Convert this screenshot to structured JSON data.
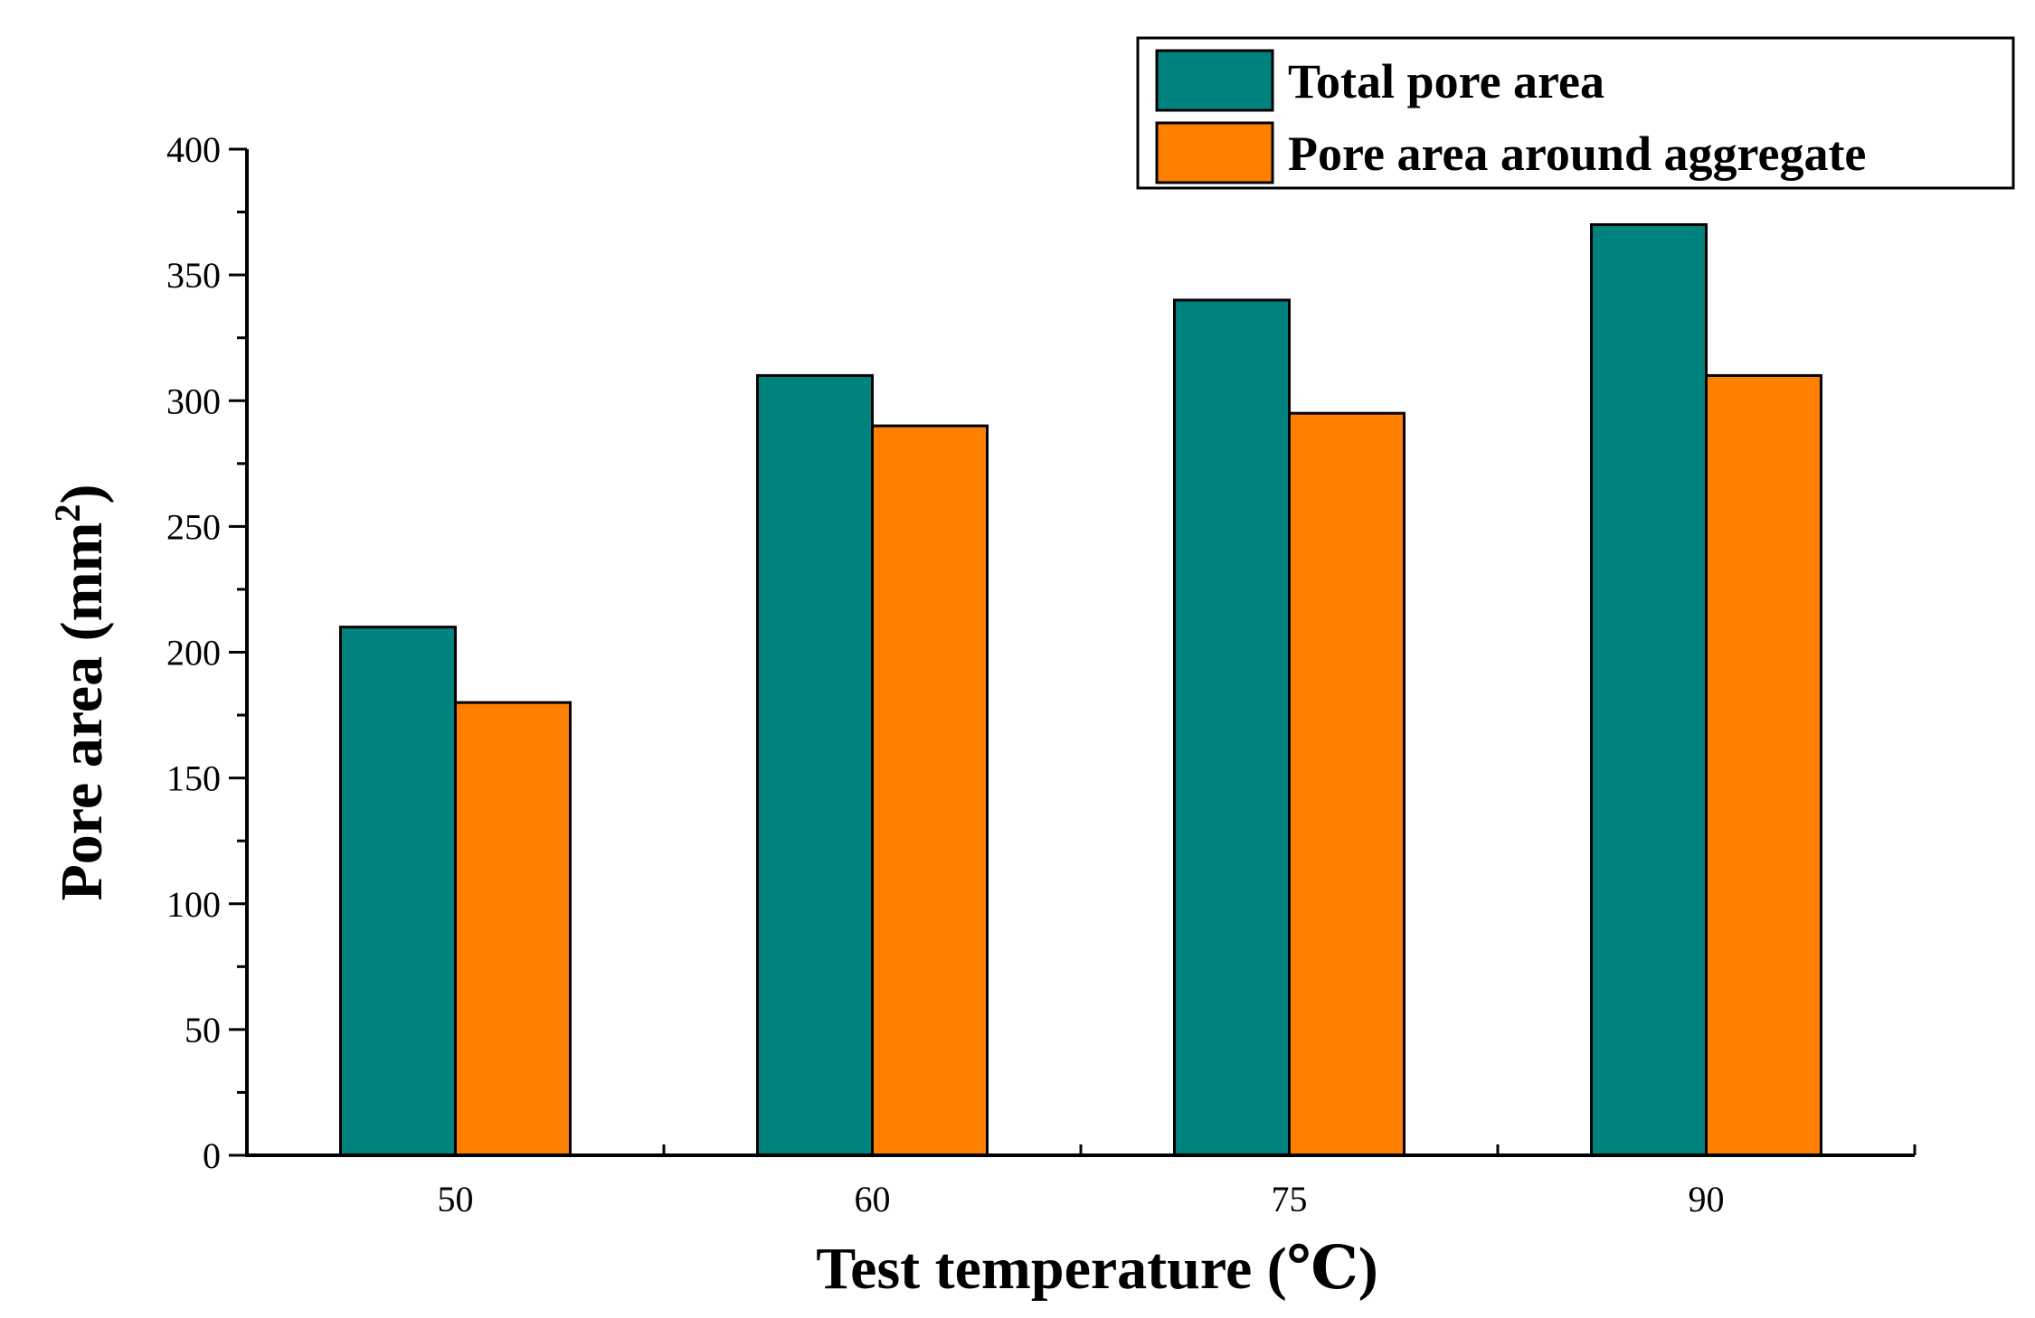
{
  "chart_data": {
    "type": "bar",
    "categories": [
      "50",
      "60",
      "75",
      "90"
    ],
    "series": [
      {
        "name": "Total pore area",
        "values": [
          210,
          310,
          340,
          370
        ],
        "color": "#00837F"
      },
      {
        "name": "Pore area around aggregate",
        "values": [
          180,
          290,
          295,
          310
        ],
        "color": "#FF8000"
      }
    ],
    "xlabel": "Test temperature (℃)",
    "ylabel_main": "Pore area (mm",
    "ylabel_sup": "2",
    "ylabel_end": ")",
    "ylim": [
      0,
      400
    ],
    "yticks": [
      "0",
      "50",
      "100",
      "150",
      "200",
      "250",
      "300",
      "350",
      "400"
    ],
    "legend_position": "top-right",
    "grid": false
  }
}
